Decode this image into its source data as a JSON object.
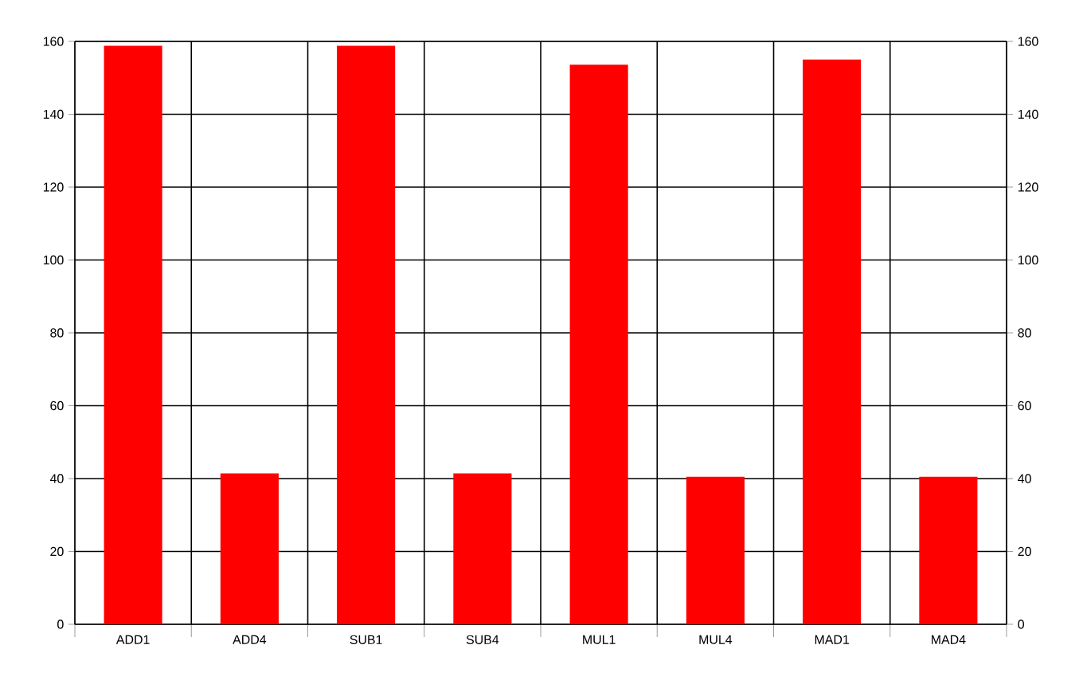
{
  "chart_data": {
    "type": "bar",
    "categories": [
      "ADD1",
      "ADD4",
      "SUB1",
      "SUB4",
      "MUL1",
      "MUL4",
      "MAD1",
      "MAD4"
    ],
    "values": [
      158.8,
      41.4,
      158.8,
      41.4,
      153.6,
      40.5,
      155.0,
      40.5
    ],
    "color": "#ff0000",
    "ylim": [
      0,
      160
    ],
    "yticks": [
      0,
      20,
      40,
      60,
      80,
      100,
      120,
      140,
      160
    ],
    "y2lim": [
      0,
      160
    ],
    "y2ticks": [
      0,
      20,
      40,
      60,
      80,
      100,
      120,
      140,
      160
    ],
    "grid": true
  }
}
